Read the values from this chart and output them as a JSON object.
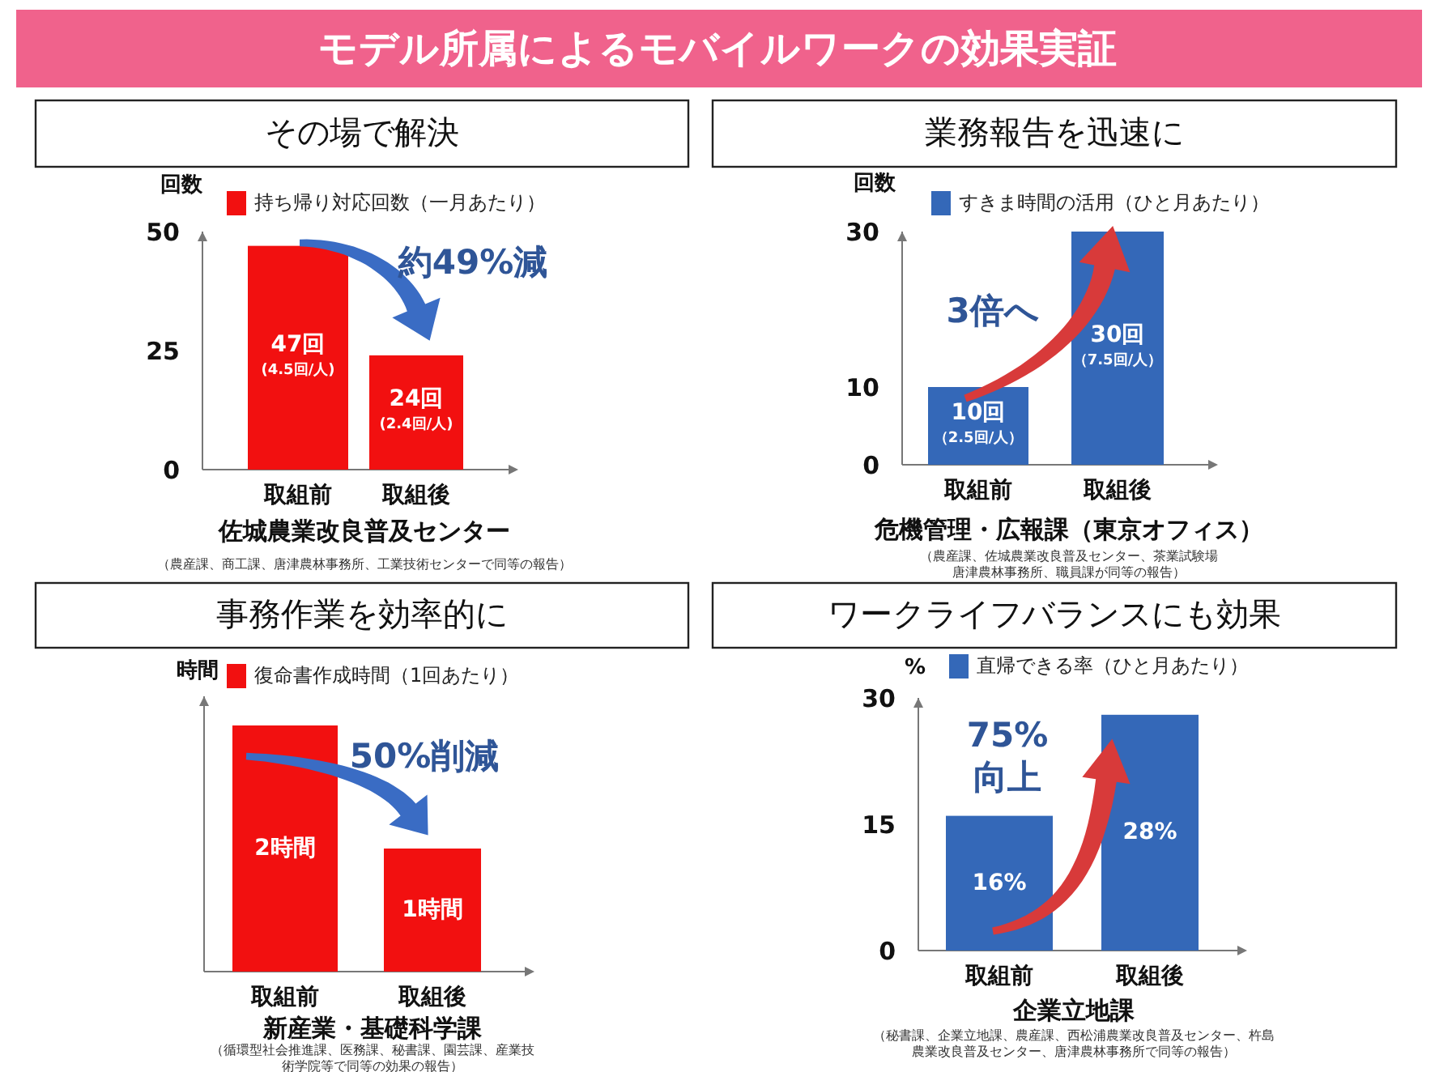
{
  "chart_data": [
    {
      "type": "other",
      "title": "モデル所属によるモバイルワークの効果実証"
    },
    {
      "type": "bar",
      "title": "その場で解決",
      "subtitle": "佐城農業改良普及センター",
      "ylabel": "回数",
      "categories": [
        "取組前",
        "取組後"
      ],
      "series": [
        {
          "name": "持ち帰り対応回数（一月あたり）",
          "color": "#f21010",
          "values": [
            47,
            24
          ],
          "value_labels": [
            "47回(4.5回/人)",
            "24回(2.4回/人)"
          ]
        }
      ],
      "ylim": [
        0,
        50
      ],
      "yticks": [
        0,
        25,
        50
      ],
      "legend": "top",
      "annotations": [
        "約49%減",
        "（農産課、商工課、唐津農林事務所、工業技術センターで同等の報告）"
      ]
    },
    {
      "type": "bar",
      "title": "業務報告を迅速に",
      "subtitle": "危機管理・広報課（東京オフィス）",
      "ylabel": "回数",
      "categories": [
        "取組前",
        "取組後"
      ],
      "series": [
        {
          "name": "すきま時間の活用（ひと月あたり）",
          "color": "#3468b8",
          "values": [
            10,
            30
          ],
          "value_labels": [
            "10回（2.5回/人）",
            "30回（7.5回/人）"
          ]
        }
      ],
      "ylim": [
        0,
        30
      ],
      "yticks": [
        0,
        10,
        30
      ],
      "legend": "top",
      "annotations": [
        "3倍へ",
        "（農産課、佐城農業改良普及センター、茶業試験場唐津農林事務所、職員課が同等の報告）"
      ]
    },
    {
      "type": "bar",
      "title": "事務作業を効率的に",
      "subtitle": "新産業・基礎科学課",
      "ylabel": "時間",
      "categories": [
        "取組前",
        "取組後"
      ],
      "series": [
        {
          "name": "復命書作成時間（1回あたり）",
          "color": "#f21010",
          "values": [
            2,
            1
          ],
          "value_labels": [
            "2時間",
            "1時間"
          ]
        }
      ],
      "tick_labels": "x",
      "legend": "top",
      "annotations": [
        "50%削減",
        "（循環型社会推進課、医務課、秘書課、園芸課、産業技術学院等で同等の効果の報告）"
      ]
    },
    {
      "type": "bar",
      "title": "ワークライフバランスにも効果",
      "subtitle": "企業立地課",
      "ylabel": "%",
      "categories": [
        "取組前",
        "取組後"
      ],
      "series": [
        {
          "name": "直帰できる率（ひと月あたり）",
          "color": "#3468b8",
          "values": [
            16,
            28
          ],
          "value_labels": [
            "16%",
            "28%"
          ]
        }
      ],
      "ylim": [
        0,
        30
      ],
      "yticks": [
        0,
        15,
        30
      ],
      "legend": "top",
      "annotations": [
        "75%",
        "向上",
        "（秘書課、企業立地課、農産課、西松浦農業改良普及センター、杵島農業改良普及センター、唐津農林事務所で同等の報告）"
      ]
    }
  ]
}
